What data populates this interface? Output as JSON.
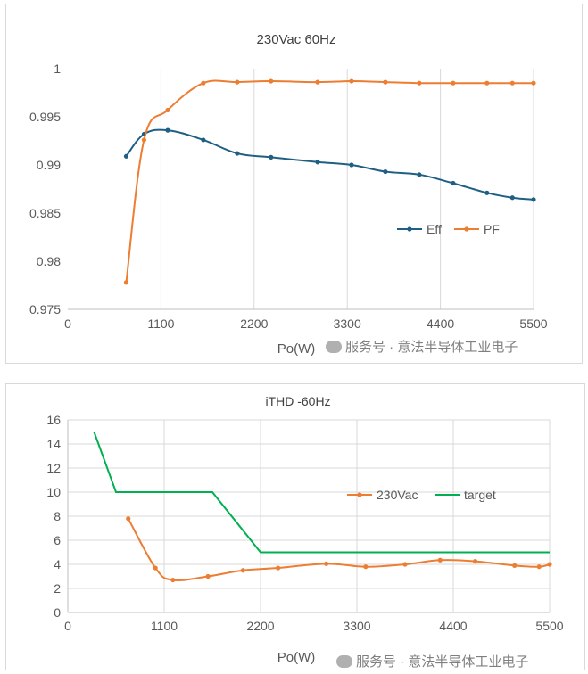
{
  "chart_data": [
    {
      "type": "line",
      "title": "230Vac  60Hz",
      "xlabel": "Po(W)",
      "ylabel": "",
      "xlim": [
        0,
        5500
      ],
      "ylim": [
        0.975,
        1.0
      ],
      "x_ticks": [
        "0",
        "1100",
        "2200",
        "3300",
        "4400",
        "5500"
      ],
      "y_ticks": [
        "0.975",
        "0.98",
        "0.985",
        "0.99",
        "0.995",
        "1"
      ],
      "grid": "vertical",
      "legend": "right",
      "series": [
        {
          "name": "Eff",
          "color": "#1f5f83",
          "x": [
            690,
            900,
            1180,
            1600,
            2000,
            2400,
            2950,
            3350,
            3750,
            4150,
            4550,
            4950,
            5250,
            5500
          ],
          "y": [
            0.9909,
            0.9932,
            0.9936,
            0.9926,
            0.9912,
            0.9908,
            0.9903,
            0.99,
            0.9893,
            0.989,
            0.9881,
            0.9871,
            0.9866,
            0.9864
          ]
        },
        {
          "name": "PF",
          "color": "#ed7d31",
          "x": [
            690,
            900,
            1180,
            1600,
            2000,
            2400,
            2950,
            3350,
            3750,
            4150,
            4550,
            4950,
            5250,
            5500
          ],
          "y": [
            0.9778,
            0.9926,
            0.9957,
            0.9985,
            0.9986,
            0.9987,
            0.9986,
            0.9987,
            0.9986,
            0.9985,
            0.9985,
            0.9985,
            0.9985,
            0.9985
          ]
        }
      ]
    },
    {
      "type": "line",
      "title": "iTHD -60Hz",
      "xlabel": "Po(W)",
      "ylabel": "",
      "xlim": [
        0,
        5500
      ],
      "ylim": [
        0,
        16
      ],
      "x_ticks": [
        "0",
        "1100",
        "2200",
        "3300",
        "4400",
        "5500"
      ],
      "y_ticks": [
        "0",
        "2",
        "4",
        "6",
        "8",
        "10",
        "12",
        "14",
        "16"
      ],
      "grid": "both",
      "legend": "top-right",
      "series": [
        {
          "name": "230Vac",
          "color": "#ed7d31",
          "markers": true,
          "x": [
            690,
            1000,
            1200,
            1600,
            2000,
            2400,
            2950,
            3400,
            3850,
            4250,
            4650,
            5100,
            5380,
            5500
          ],
          "y": [
            7.8,
            3.7,
            2.7,
            3.0,
            3.5,
            3.7,
            4.05,
            3.8,
            4.0,
            4.35,
            4.25,
            3.9,
            3.8,
            4.0
          ]
        },
        {
          "name": "target",
          "color": "#00b050",
          "markers": false,
          "x": [
            300,
            550,
            1650,
            2200,
            5500
          ],
          "y": [
            15,
            10,
            10,
            5,
            5
          ]
        }
      ]
    }
  ],
  "watermark": {
    "text": "服务号 · 意法半导体工业电子",
    "icon": "wechat-icon"
  }
}
